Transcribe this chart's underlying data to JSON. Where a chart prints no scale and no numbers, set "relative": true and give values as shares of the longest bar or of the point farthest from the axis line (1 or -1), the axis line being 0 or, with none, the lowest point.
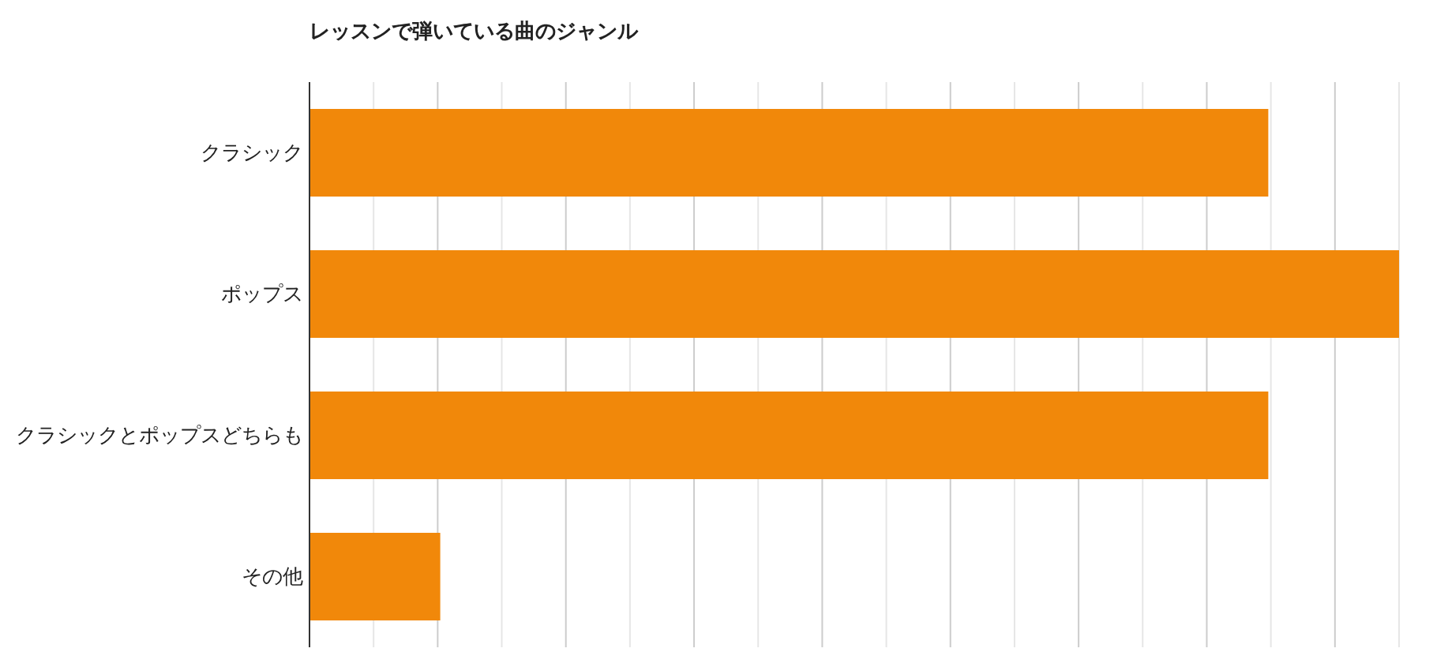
{
  "chart_data": {
    "type": "bar",
    "orientation": "horizontal",
    "relative": true,
    "title": "レッスンで弾いている曲のジャンル",
    "categories": [
      "クラシック",
      "ポップス",
      "クラシックとポップスどちらも",
      "その他"
    ],
    "values": [
      0.88,
      1,
      0.88,
      0.12
    ],
    "color": "#f1880a",
    "grid": "x"
  }
}
